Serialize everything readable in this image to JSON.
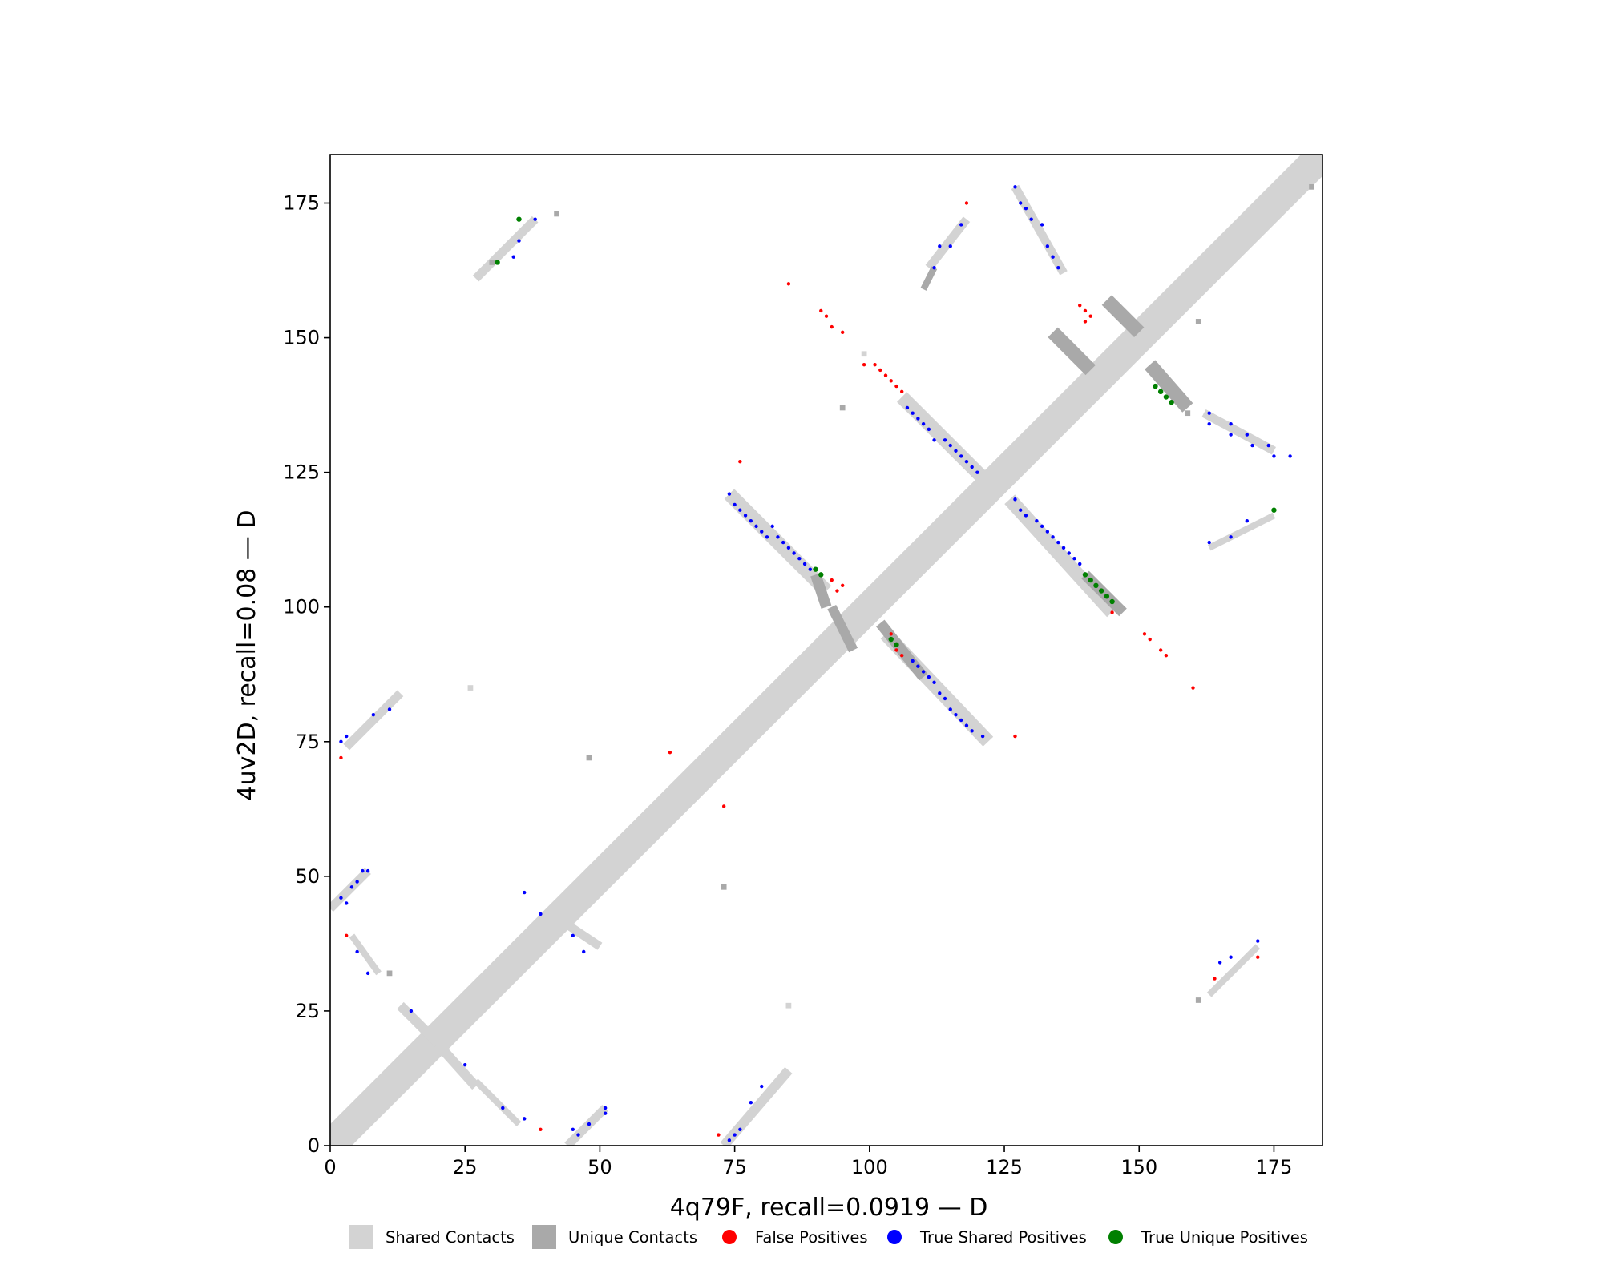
{
  "chart_data": {
    "type": "scatter",
    "title": "",
    "xlabel": "4q79F, recall=0.0919 — D",
    "ylabel": "4uv2D, recall=0.08 — D",
    "xlim": [
      0,
      184
    ],
    "ylim": [
      0,
      184
    ],
    "x_ticks": [
      "0",
      "25",
      "50",
      "75",
      "100",
      "125",
      "150",
      "175"
    ],
    "y_ticks": [
      "0",
      "25",
      "50",
      "75",
      "100",
      "125",
      "150",
      "175"
    ],
    "grid": false,
    "legend_placement": "bottom-center",
    "colors": {
      "shared": "#d3d3d3",
      "unique": "#a9a9a9",
      "false_positive": "#ff0000",
      "true_shared": "#0000ff",
      "true_unique": "#008000"
    },
    "legend": [
      {
        "key": "shared",
        "label": "Shared Contacts",
        "marker": "square"
      },
      {
        "key": "unique",
        "label": "Unique Contacts",
        "marker": "square"
      },
      {
        "key": "false_positive",
        "label": "False Positives",
        "marker": "circle"
      },
      {
        "key": "true_shared",
        "label": "True Shared Positives",
        "marker": "circle"
      },
      {
        "key": "true_unique",
        "label": "True Unique Positives",
        "marker": "circle"
      }
    ],
    "diagonal_band": {
      "series": "shared",
      "from": 0,
      "to": 183,
      "half_width": 4
    },
    "contact_segments": [
      {
        "series": "shared",
        "from": [
          74,
          121
        ],
        "to": [
          92,
          103
        ],
        "width": 1.3
      },
      {
        "series": "unique",
        "from": [
          90,
          106
        ],
        "to": [
          92,
          100
        ],
        "width": 1.0
      },
      {
        "series": "shared",
        "from": [
          103,
          95
        ],
        "to": [
          122,
          75
        ],
        "width": 1.3
      },
      {
        "series": "unique",
        "from": [
          102,
          97
        ],
        "to": [
          110,
          87
        ],
        "width": 1.0
      },
      {
        "series": "shared",
        "from": [
          106,
          139
        ],
        "to": [
          122,
          123
        ],
        "width": 1.3
      },
      {
        "series": "shared",
        "from": [
          126,
          120
        ],
        "to": [
          145,
          99
        ],
        "width": 1.3
      },
      {
        "series": "unique",
        "from": [
          140,
          106
        ],
        "to": [
          147,
          99
        ],
        "width": 1.0
      },
      {
        "series": "unique",
        "from": [
          134,
          151
        ],
        "to": [
          141,
          144
        ],
        "width": 1.3
      },
      {
        "series": "unique",
        "from": [
          144,
          157
        ],
        "to": [
          150,
          151
        ],
        "width": 1.3
      },
      {
        "series": "unique",
        "from": [
          152,
          145
        ],
        "to": [
          159,
          137
        ],
        "width": 1.3
      },
      {
        "series": "shared",
        "from": [
          162,
          136
        ],
        "to": [
          175,
          129
        ],
        "width": 0.8
      },
      {
        "series": "shared",
        "from": [
          127,
          178
        ],
        "to": [
          136,
          162
        ],
        "width": 0.8
      },
      {
        "series": "shared",
        "from": [
          111,
          163
        ],
        "to": [
          118,
          172
        ],
        "width": 0.8
      },
      {
        "series": "unique",
        "from": [
          110,
          159
        ],
        "to": [
          112,
          163
        ],
        "width": 0.6
      },
      {
        "series": "shared",
        "from": [
          3,
          74
        ],
        "to": [
          13,
          84
        ],
        "width": 0.8
      },
      {
        "series": "shared",
        "from": [
          0,
          44
        ],
        "to": [
          7,
          51
        ],
        "width": 0.8
      },
      {
        "series": "shared",
        "from": [
          44,
          0
        ],
        "to": [
          51,
          7
        ],
        "width": 0.8
      },
      {
        "series": "shared",
        "from": [
          73,
          0
        ],
        "to": [
          85,
          14
        ],
        "width": 0.9
      },
      {
        "series": "shared",
        "from": [
          27,
          161
        ],
        "to": [
          38,
          172
        ],
        "width": 0.8
      },
      {
        "series": "shared",
        "from": [
          163,
          28
        ],
        "to": [
          172,
          37
        ],
        "width": 0.6
      },
      {
        "series": "shared",
        "from": [
          163,
          111
        ],
        "to": [
          175,
          117
        ],
        "width": 0.6
      },
      {
        "series": "shared",
        "from": [
          18,
          21
        ],
        "to": [
          27,
          11
        ],
        "width": 0.9
      },
      {
        "series": "shared",
        "from": [
          13,
          26
        ],
        "to": [
          20,
          19
        ],
        "width": 0.9
      },
      {
        "series": "shared",
        "from": [
          27,
          12
        ],
        "to": [
          35,
          4
        ],
        "width": 0.6
      },
      {
        "series": "shared",
        "from": [
          44,
          41
        ],
        "to": [
          50,
          37
        ],
        "width": 0.8
      },
      {
        "series": "shared",
        "from": [
          4,
          39
        ],
        "to": [
          9,
          32
        ],
        "width": 0.6
      },
      {
        "series": "unique",
        "from": [
          93,
          100
        ],
        "to": [
          97,
          92
        ],
        "width": 0.9
      }
    ],
    "contact_cells": [
      {
        "series": "unique",
        "x": 30,
        "y": 164
      },
      {
        "series": "unique",
        "x": 42,
        "y": 173
      },
      {
        "series": "unique",
        "x": 95,
        "y": 137
      },
      {
        "series": "unique",
        "x": 48,
        "y": 72
      },
      {
        "series": "unique",
        "x": 73,
        "y": 48
      },
      {
        "series": "unique",
        "x": 161,
        "y": 27
      },
      {
        "series": "unique",
        "x": 159,
        "y": 136
      },
      {
        "series": "unique",
        "x": 11,
        "y": 32
      },
      {
        "series": "unique",
        "x": 161,
        "y": 153
      },
      {
        "series": "unique",
        "x": 182,
        "y": 178
      },
      {
        "series": "shared",
        "x": 26,
        "y": 85
      },
      {
        "series": "shared",
        "x": 85,
        "y": 26
      },
      {
        "series": "shared",
        "x": 99,
        "y": 147
      }
    ],
    "false_positives": [
      [
        85,
        160
      ],
      [
        91,
        155
      ],
      [
        92,
        154
      ],
      [
        93,
        152
      ],
      [
        95,
        151
      ],
      [
        99,
        145
      ],
      [
        101,
        145
      ],
      [
        102,
        144
      ],
      [
        103,
        143
      ],
      [
        104,
        142
      ],
      [
        105,
        141
      ],
      [
        106,
        140
      ],
      [
        118,
        175
      ],
      [
        139,
        156
      ],
      [
        140,
        155
      ],
      [
        141,
        154
      ],
      [
        140,
        153
      ],
      [
        76,
        127
      ],
      [
        93,
        105
      ],
      [
        95,
        104
      ],
      [
        94,
        103
      ],
      [
        145,
        99
      ],
      [
        151,
        95
      ],
      [
        152,
        94
      ],
      [
        154,
        92
      ],
      [
        155,
        91
      ],
      [
        160,
        85
      ],
      [
        104,
        95
      ],
      [
        105,
        92
      ],
      [
        106,
        91
      ],
      [
        127,
        76
      ],
      [
        63,
        73
      ],
      [
        73,
        63
      ],
      [
        2,
        72
      ],
      [
        3,
        39
      ],
      [
        39,
        3
      ],
      [
        72,
        2
      ],
      [
        164,
        31
      ],
      [
        172,
        35
      ]
    ],
    "true_shared_positives": [
      [
        74,
        121
      ],
      [
        75,
        119
      ],
      [
        76,
        118
      ],
      [
        77,
        117
      ],
      [
        78,
        116
      ],
      [
        79,
        115
      ],
      [
        80,
        114
      ],
      [
        82,
        115
      ],
      [
        81,
        113
      ],
      [
        83,
        113
      ],
      [
        84,
        112
      ],
      [
        85,
        111
      ],
      [
        86,
        110
      ],
      [
        87,
        109
      ],
      [
        88,
        108
      ],
      [
        89,
        107
      ],
      [
        107,
        137
      ],
      [
        108,
        136
      ],
      [
        109,
        135
      ],
      [
        110,
        134
      ],
      [
        111,
        133
      ],
      [
        112,
        131
      ],
      [
        114,
        131
      ],
      [
        115,
        130
      ],
      [
        116,
        129
      ],
      [
        117,
        128
      ],
      [
        118,
        127
      ],
      [
        119,
        126
      ],
      [
        120,
        125
      ],
      [
        127,
        120
      ],
      [
        128,
        118
      ],
      [
        129,
        117
      ],
      [
        131,
        116
      ],
      [
        132,
        115
      ],
      [
        133,
        114
      ],
      [
        134,
        113
      ],
      [
        135,
        112
      ],
      [
        136,
        111
      ],
      [
        137,
        110
      ],
      [
        138,
        109
      ],
      [
        139,
        108
      ],
      [
        108,
        90
      ],
      [
        109,
        89
      ],
      [
        110,
        88
      ],
      [
        111,
        87
      ],
      [
        112,
        86
      ],
      [
        113,
        84
      ],
      [
        114,
        83
      ],
      [
        115,
        81
      ],
      [
        116,
        80
      ],
      [
        117,
        79
      ],
      [
        118,
        78
      ],
      [
        119,
        77
      ],
      [
        121,
        76
      ],
      [
        127,
        178
      ],
      [
        128,
        175
      ],
      [
        129,
        174
      ],
      [
        130,
        172
      ],
      [
        132,
        171
      ],
      [
        133,
        167
      ],
      [
        134,
        165
      ],
      [
        135,
        163
      ],
      [
        113,
        167
      ],
      [
        115,
        167
      ],
      [
        117,
        171
      ],
      [
        112,
        163
      ],
      [
        163,
        136
      ],
      [
        163,
        134
      ],
      [
        167,
        134
      ],
      [
        167,
        132
      ],
      [
        170,
        132
      ],
      [
        171,
        130
      ],
      [
        174,
        130
      ],
      [
        175,
        128
      ],
      [
        178,
        128
      ],
      [
        163,
        112
      ],
      [
        167,
        113
      ],
      [
        170,
        116
      ],
      [
        2,
        75
      ],
      [
        3,
        76
      ],
      [
        8,
        80
      ],
      [
        11,
        81
      ],
      [
        2,
        46
      ],
      [
        3,
        45
      ],
      [
        4,
        48
      ],
      [
        5,
        49
      ],
      [
        6,
        51
      ],
      [
        7,
        51
      ],
      [
        5,
        36
      ],
      [
        7,
        32
      ],
      [
        15,
        25
      ],
      [
        25,
        15
      ],
      [
        36,
        47
      ],
      [
        39,
        43
      ],
      [
        45,
        39
      ],
      [
        47,
        36
      ],
      [
        32,
        7
      ],
      [
        36,
        5
      ],
      [
        45,
        3
      ],
      [
        46,
        2
      ],
      [
        48,
        4
      ],
      [
        51,
        6
      ],
      [
        51,
        7
      ],
      [
        75,
        2
      ],
      [
        76,
        3
      ],
      [
        74,
        1
      ],
      [
        78,
        8
      ],
      [
        80,
        11
      ],
      [
        34,
        165
      ],
      [
        35,
        168
      ],
      [
        38,
        172
      ],
      [
        165,
        34
      ],
      [
        167,
        35
      ],
      [
        172,
        38
      ]
    ],
    "true_unique_positives": [
      [
        35,
        172
      ],
      [
        31,
        164
      ],
      [
        90,
        107
      ],
      [
        91,
        106
      ],
      [
        104,
        94
      ],
      [
        105,
        93
      ],
      [
        140,
        106
      ],
      [
        141,
        105
      ],
      [
        142,
        104
      ],
      [
        143,
        103
      ],
      [
        144,
        102
      ],
      [
        145,
        101
      ],
      [
        153,
        141
      ],
      [
        154,
        140
      ],
      [
        155,
        139
      ],
      [
        156,
        138
      ],
      [
        175,
        118
      ]
    ]
  }
}
